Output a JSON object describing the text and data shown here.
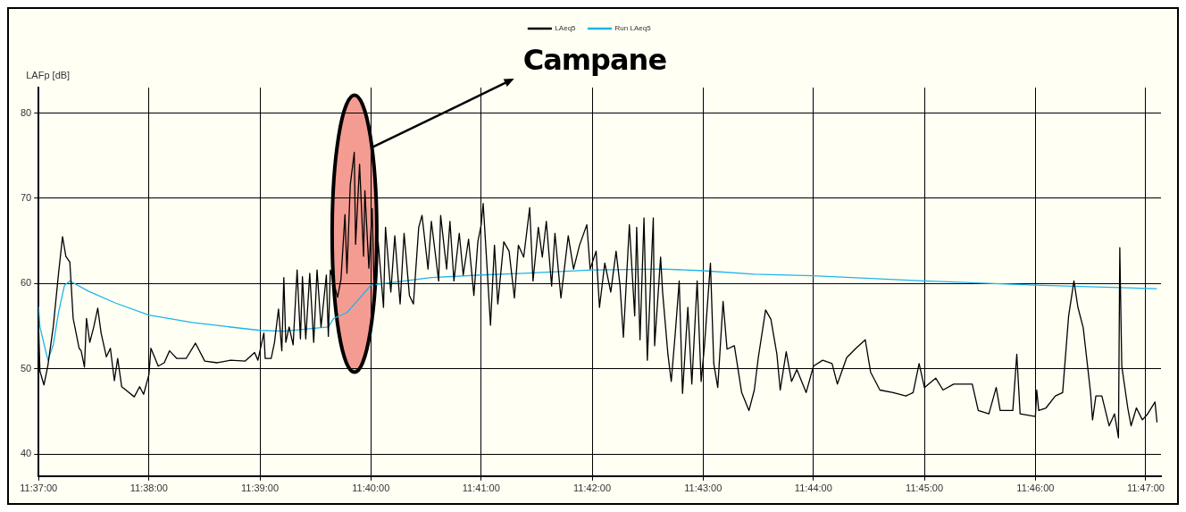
{
  "chart_data": {
    "type": "line",
    "ylabel": "LAFp [dB]",
    "legend": "top",
    "grid": true,
    "marker": "none",
    "line_style": "solid",
    "xlim": [
      11.6167,
      11.7856
    ],
    "ylim": [
      37.4,
      83
    ],
    "yticks": [
      40,
      50,
      60,
      70,
      80
    ],
    "xticks": [
      {
        "value": 11.6167,
        "label": "11:37:00"
      },
      {
        "value": 11.6333,
        "label": "11:38:00"
      },
      {
        "value": 11.65,
        "label": "11:39:00"
      },
      {
        "value": 11.6667,
        "label": "11:40:00"
      },
      {
        "value": 11.6833,
        "label": "11:41:00"
      },
      {
        "value": 11.7,
        "label": "11:42:00"
      },
      {
        "value": 11.7167,
        "label": "11:43:00"
      },
      {
        "value": 11.7333,
        "label": "11:44:00"
      },
      {
        "value": 11.75,
        "label": "11:45:00"
      },
      {
        "value": 11.7667,
        "label": "11:46:00"
      },
      {
        "value": 11.7833,
        "label": "11:47:00"
      }
    ],
    "annotations": [
      "Campane"
    ],
    "series": [
      {
        "name": "LAeq5",
        "color": "#000000",
        "x": [
          11.6167,
          11.6169,
          11.6175,
          11.6181,
          11.6189,
          11.6197,
          11.6203,
          11.6208,
          11.6214,
          11.6219,
          11.6228,
          11.6231,
          11.6236,
          11.6239,
          11.6244,
          11.625,
          11.6256,
          11.6261,
          11.6269,
          11.6275,
          11.6281,
          11.6286,
          11.6292,
          11.63,
          11.6311,
          11.6319,
          11.6325,
          11.6333,
          11.6336,
          11.6347,
          11.6356,
          11.6364,
          11.6375,
          11.6389,
          11.6403,
          11.6417,
          11.6436,
          11.6456,
          11.6478,
          11.6492,
          11.6497,
          11.6506,
          11.6508,
          11.6517,
          11.6522,
          11.6528,
          11.6533,
          11.6536,
          11.6539,
          11.6544,
          11.655,
          11.6556,
          11.6561,
          11.6564,
          11.6569,
          11.6575,
          11.6581,
          11.6586,
          11.6592,
          11.66,
          11.6603,
          11.6606,
          11.6617,
          11.6622,
          11.6628,
          11.6631,
          11.6636,
          11.6642,
          11.6644,
          11.665,
          11.6656,
          11.6658,
          11.6664,
          11.6669,
          11.6672,
          11.6678,
          11.6686,
          11.6689,
          11.6697,
          11.6703,
          11.6711,
          11.6717,
          11.6725,
          11.6731,
          11.6739,
          11.6744,
          11.6753,
          11.6758,
          11.6769,
          11.6772,
          11.6781,
          11.6786,
          11.6792,
          11.68,
          11.6806,
          11.6814,
          11.6822,
          11.6828,
          11.6833,
          11.6836,
          11.6842,
          11.6847,
          11.6853,
          11.6858,
          11.6867,
          11.6875,
          11.6883,
          11.6889,
          11.6897,
          11.6906,
          11.6911,
          11.6919,
          11.6925,
          11.6931,
          11.6939,
          11.6944,
          11.6953,
          11.6964,
          11.6972,
          11.6981,
          11.6992,
          11.6997,
          11.7006,
          11.7011,
          11.7019,
          11.7028,
          11.7036,
          11.7042,
          11.7047,
          11.7056,
          11.7064,
          11.7067,
          11.7072,
          11.7078,
          11.7083,
          11.7092,
          11.7094,
          11.7103,
          11.7106,
          11.7114,
          11.7119,
          11.7125,
          11.7131,
          11.7136,
          11.7144,
          11.715,
          11.7158,
          11.7164,
          11.7169,
          11.7178,
          11.7183,
          11.7189,
          11.7197,
          11.7203,
          11.7214,
          11.7225,
          11.7236,
          11.7244,
          11.725,
          11.7261,
          11.7269,
          11.7278,
          11.7283,
          11.7292,
          11.73,
          11.7308,
          11.7322,
          11.7333,
          11.7347,
          11.7361,
          11.7369,
          11.7383,
          11.7397,
          11.7411,
          11.7419,
          11.7433,
          11.7453,
          11.7472,
          11.7483,
          11.7492,
          11.75,
          11.7517,
          11.7528,
          11.7544,
          11.7572,
          11.7581,
          11.7597,
          11.7608,
          11.7614,
          11.7633,
          11.7639,
          11.7644,
          11.7667,
          11.7669,
          11.7672,
          11.7683,
          11.7697,
          11.7708,
          11.7717,
          11.7725,
          11.7731,
          11.7739,
          11.775,
          11.7753,
          11.7758,
          11.7767,
          11.7778,
          11.7786,
          11.7792,
          11.7794,
          11.7797,
          11.7806,
          11.7811,
          11.7819,
          11.7828,
          11.7836,
          11.7847,
          11.785
        ],
        "values": [
          55.0,
          49.7,
          48.1,
          50.4,
          54.9,
          61.2,
          65.5,
          63.2,
          62.5,
          55.9,
          52.4,
          52.1,
          50.2,
          55.9,
          53.1,
          54.9,
          57.1,
          54.2,
          51.4,
          52.4,
          48.6,
          51.2,
          47.9,
          47.4,
          46.7,
          47.9,
          47.0,
          49.3,
          52.4,
          50.3,
          50.7,
          52.1,
          51.2,
          51.2,
          53.0,
          50.9,
          50.7,
          51.0,
          50.9,
          51.9,
          51.0,
          54.2,
          51.2,
          51.2,
          53.1,
          57.0,
          52.1,
          60.7,
          53.1,
          54.9,
          52.8,
          61.6,
          53.5,
          60.8,
          53.5,
          61.2,
          53.1,
          61.6,
          54.9,
          61.0,
          53.8,
          61.6,
          58.4,
          60.5,
          68.1,
          61.2,
          71.6,
          75.4,
          64.6,
          74.0,
          63.2,
          70.9,
          61.8,
          68.8,
          58.6,
          64.9,
          57.2,
          66.6,
          59.0,
          65.6,
          57.6,
          65.9,
          58.6,
          57.6,
          66.6,
          68.0,
          61.7,
          67.3,
          60.3,
          68.0,
          61.7,
          67.3,
          60.3,
          65.9,
          61.0,
          65.2,
          58.6,
          64.9,
          66.9,
          69.4,
          61.7,
          55.1,
          64.5,
          57.6,
          64.9,
          63.8,
          58.3,
          64.5,
          63.1,
          68.9,
          60.3,
          66.6,
          63.1,
          67.3,
          59.7,
          65.9,
          58.3,
          65.6,
          61.7,
          64.5,
          66.9,
          61.7,
          63.8,
          57.2,
          62.4,
          59.0,
          63.8,
          59.7,
          53.7,
          66.9,
          56.2,
          66.6,
          53.4,
          67.7,
          51.0,
          67.7,
          52.7,
          63.1,
          59.0,
          51.7,
          48.5,
          54.1,
          60.3,
          47.1,
          57.2,
          48.2,
          60.3,
          48.5,
          52.7,
          62.4,
          50.6,
          47.8,
          57.9,
          52.3,
          52.7,
          47.2,
          45.1,
          47.5,
          51.3,
          56.9,
          55.8,
          51.7,
          47.5,
          52.0,
          48.5,
          49.9,
          47.2,
          50.3,
          51.0,
          50.6,
          48.2,
          51.3,
          52.4,
          53.4,
          49.6,
          47.5,
          47.2,
          46.8,
          47.2,
          50.6,
          47.8,
          48.9,
          47.5,
          48.2,
          48.2,
          45.1,
          44.7,
          47.8,
          45.1,
          45.1,
          51.7,
          44.7,
          44.4,
          47.5,
          45.1,
          45.4,
          46.8,
          47.2,
          56.2,
          60.3,
          57.2,
          54.8,
          47.2,
          44.0,
          46.8,
          46.8,
          43.3,
          44.7,
          41.9,
          64.2,
          50.3,
          45.4,
          43.3,
          45.4,
          44.0,
          44.7,
          46.1,
          43.7
        ]
      },
      {
        "name": "Run LAeq5",
        "color": "#1cb4ec",
        "x": [
          11.6167,
          11.6169,
          11.6181,
          11.6189,
          11.6197,
          11.6206,
          11.6214,
          11.6242,
          11.6283,
          11.6333,
          11.64,
          11.65,
          11.6536,
          11.6603,
          11.6611,
          11.6631,
          11.6647,
          11.6667,
          11.6758,
          11.6833,
          11.6897,
          11.7,
          11.7106,
          11.7167,
          11.7244,
          11.7333,
          11.75,
          11.7667,
          11.785
        ],
        "values": [
          57.3,
          54.9,
          51.0,
          52.8,
          56.6,
          59.8,
          60.3,
          59.1,
          57.7,
          56.3,
          55.4,
          54.5,
          54.4,
          54.9,
          55.9,
          56.6,
          58.0,
          59.8,
          60.7,
          61.0,
          61.2,
          61.6,
          61.7,
          61.5,
          61.1,
          60.9,
          60.3,
          59.8,
          59.4
        ]
      }
    ]
  }
}
